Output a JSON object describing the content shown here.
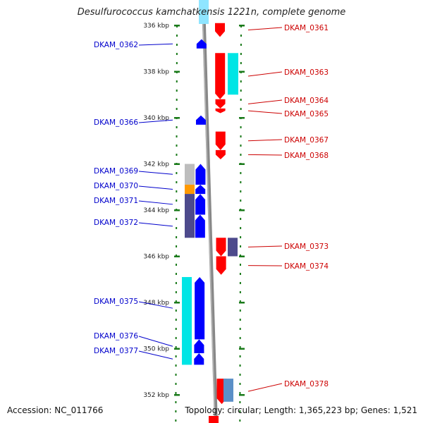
{
  "title": "Desulfurococcus kamchatkensis 1221n, complete genome",
  "footer": {
    "accession": "Accession: NC_011766",
    "summary": "Topology: circular; Length: 1,365,223 bp; Genes: 1,521"
  },
  "colors": {
    "forward_gene": "#ff0000",
    "reverse_gene": "#0000ff",
    "forward_label": "#cc0000",
    "reverse_label": "#0000cc",
    "tick": "#1a7a1a",
    "backbone": "#888888",
    "cyan": "#00e5e5",
    "gray": "#bdbdbd",
    "orange": "#ff9900",
    "slate": "#4d4a8c",
    "steelblue": "#5b8fc7"
  },
  "scale": {
    "unit": "kbp",
    "ticks": [
      {
        "kbp": 336,
        "label": "336 kbp"
      },
      {
        "kbp": 338,
        "label": "338 kbp"
      },
      {
        "kbp": 340,
        "label": "340 kbp"
      },
      {
        "kbp": 342,
        "label": "342 kbp"
      },
      {
        "kbp": 344,
        "label": "344 kbp"
      },
      {
        "kbp": 346,
        "label": "346 kbp"
      },
      {
        "kbp": 348,
        "label": "348 kbp"
      },
      {
        "kbp": 350,
        "label": "350 kbp"
      },
      {
        "kbp": 352,
        "label": "352 kbp"
      }
    ]
  },
  "features": {
    "forward": [
      {
        "id": "DKAM_0361",
        "start": 335.9,
        "end": 336.5
      },
      {
        "id": "DKAM_0363",
        "start": 337.2,
        "end": 339.2
      },
      {
        "id": "DKAM_0364",
        "start": 339.2,
        "end": 339.6
      },
      {
        "id": "DKAM_0365",
        "start": 339.6,
        "end": 339.8
      },
      {
        "id": "DKAM_0367",
        "start": 340.6,
        "end": 341.4
      },
      {
        "id": "DKAM_0368",
        "start": 341.4,
        "end": 341.8
      },
      {
        "id": "DKAM_0373",
        "start": 345.2,
        "end": 346.0
      },
      {
        "id": "DKAM_0374",
        "start": 346.0,
        "end": 346.8
      },
      {
        "id": "DKAM_0378",
        "start": 351.3,
        "end": 352.4
      }
    ],
    "reverse": [
      {
        "id": "DKAM_0362",
        "start": 336.6,
        "end": 337.0
      },
      {
        "id": "DKAM_0366",
        "start": 339.9,
        "end": 340.3
      },
      {
        "id": "DKAM_0369",
        "start": 342.0,
        "end": 342.9
      },
      {
        "id": "DKAM_0370",
        "start": 342.9,
        "end": 343.3
      },
      {
        "id": "DKAM_0371",
        "start": 343.3,
        "end": 344.2
      },
      {
        "id": "DKAM_0372",
        "start": 344.2,
        "end": 345.2
      },
      {
        "id": "DKAM_0375",
        "start": 346.9,
        "end": 349.6
      },
      {
        "id": "DKAM_0376",
        "start": 349.6,
        "end": 350.2
      },
      {
        "id": "DKAM_0377",
        "start": 350.2,
        "end": 350.7
      }
    ]
  }
}
